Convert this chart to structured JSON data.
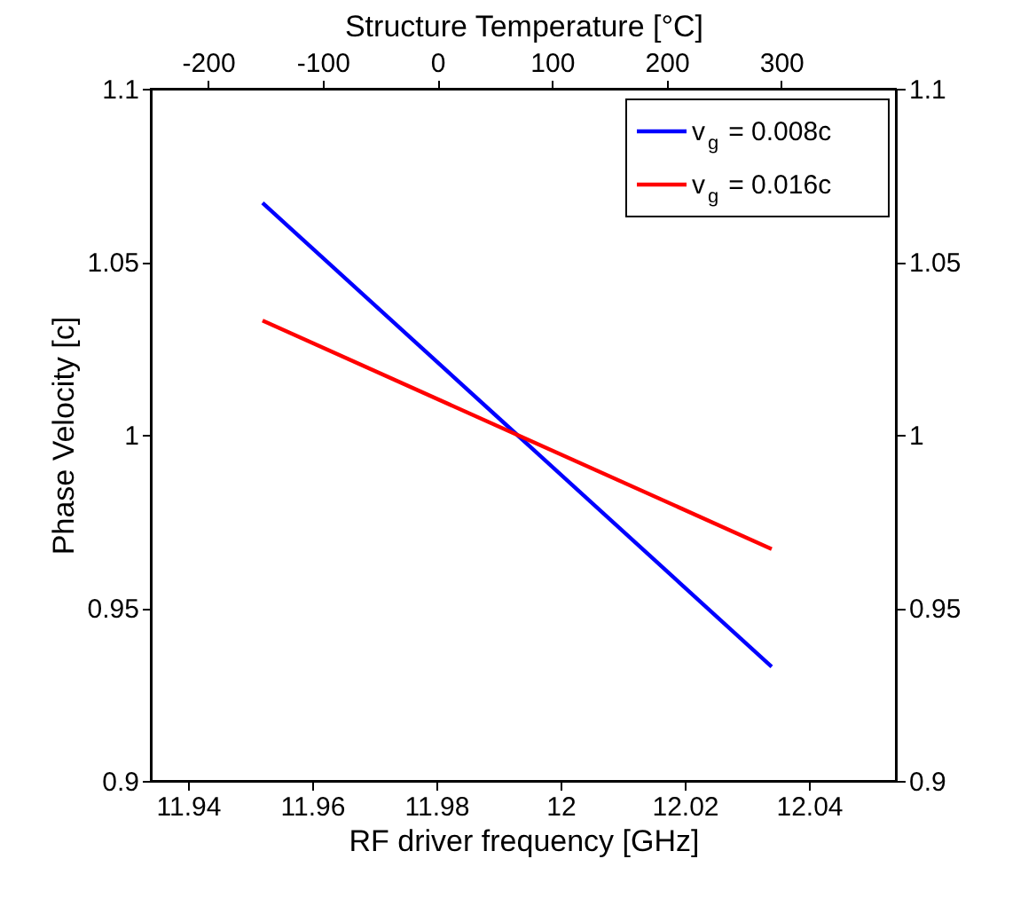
{
  "chart_data": {
    "type": "line",
    "xlabel": "RF driver frequency [GHz]",
    "ylabel": "Phase Velocity [c]",
    "x2label": "Structure Temperature [°C]",
    "xlim": [
      11.934,
      12.054
    ],
    "xticks": [
      11.94,
      11.96,
      11.98,
      12,
      12.02,
      12.04
    ],
    "x2lim": [
      -250,
      400
    ],
    "x2ticks": [
      -200,
      -100,
      0,
      100,
      200,
      300
    ],
    "ylim": [
      0.9,
      1.1
    ],
    "yticks": [
      0.9,
      0.95,
      1,
      1.05,
      1.1
    ],
    "y2lim": [
      0.9,
      1.1
    ],
    "y2ticks": [
      0.9,
      0.95,
      1,
      1.05,
      1.1
    ],
    "x": [
      11.952,
      11.993,
      12.034
    ],
    "series": [
      {
        "name": "v$_{g}$ = 0.008c",
        "color": "#0000ff",
        "values": [
          1.067,
          1.0,
          0.933
        ]
      },
      {
        "name": "v$_{g}$ = 0.016c",
        "color": "#ff0000",
        "values": [
          1.033,
          1.0,
          0.967
        ]
      }
    ],
    "legend": "top right",
    "grid": false,
    "marker": "none",
    "line_style": "solid"
  }
}
